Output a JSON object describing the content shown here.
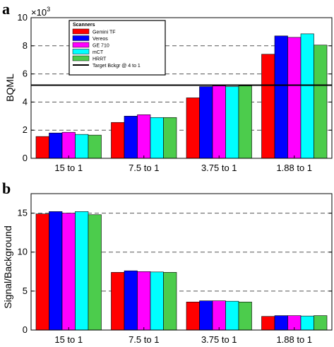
{
  "panels": {
    "a": {
      "letter": "a",
      "exponent_label": "×10",
      "exponent_power": "3",
      "legend_title": "Scanners",
      "target_label": "Target Bckgr @ 4 to 1"
    },
    "b": {
      "letter": "b"
    }
  },
  "chart_data": [
    {
      "type": "bar",
      "panel": "a",
      "title": "",
      "xlabel": "",
      "ylabel": "BQML",
      "ylim": [
        0,
        10
      ],
      "y_scale_multiplier": 1000,
      "yticks": [
        0,
        2,
        4,
        6,
        8,
        10
      ],
      "grid": "dashed horizontal at 2, 4, 6, 8",
      "legend_position": "top-left",
      "categories": [
        "15 to 1",
        "7.5 to 1",
        "3.75 to 1",
        "1.88 to 1"
      ],
      "series": [
        {
          "name": "Gemini TF",
          "color": "#ff0000",
          "values": [
            1.55,
            2.55,
            4.3,
            7.4
          ]
        },
        {
          "name": "Vereos",
          "color": "#0000ff",
          "values": [
            1.8,
            3.0,
            5.1,
            8.7
          ]
        },
        {
          "name": "GE 710",
          "color": "#ff00ff",
          "values": [
            1.85,
            3.1,
            5.15,
            8.6
          ]
        },
        {
          "name": "mCT",
          "color": "#00ffff",
          "values": [
            1.7,
            2.9,
            5.1,
            8.85
          ]
        },
        {
          "name": "HRRT",
          "color": "#4ccc4c",
          "values": [
            1.65,
            2.9,
            5.15,
            8.05
          ]
        }
      ],
      "reference_line": {
        "name": "Target Bckgr @ 4 to 1",
        "value": 5.2,
        "color": "#000000"
      }
    },
    {
      "type": "bar",
      "panel": "b",
      "title": "",
      "xlabel": "",
      "ylabel": "Signal/Background",
      "ylim": [
        0,
        17.5
      ],
      "yticks": [
        0,
        5,
        10,
        15
      ],
      "grid": "dashed horizontal at 5, 10, 15",
      "categories": [
        "15 to 1",
        "7.5 to 1",
        "3.75 to 1",
        "1.88 to 1"
      ],
      "series": [
        {
          "name": "Gemini TF",
          "color": "#ff0000",
          "values": [
            14.9,
            7.4,
            3.6,
            1.75
          ]
        },
        {
          "name": "Vereos",
          "color": "#0000ff",
          "values": [
            15.2,
            7.6,
            3.75,
            1.85
          ]
        },
        {
          "name": "GE 710",
          "color": "#ff00ff",
          "values": [
            15.0,
            7.5,
            3.75,
            1.85
          ]
        },
        {
          "name": "mCT",
          "color": "#00ffff",
          "values": [
            15.2,
            7.45,
            3.7,
            1.8
          ]
        },
        {
          "name": "HRRT",
          "color": "#4ccc4c",
          "values": [
            14.8,
            7.4,
            3.6,
            1.85
          ]
        }
      ]
    }
  ]
}
